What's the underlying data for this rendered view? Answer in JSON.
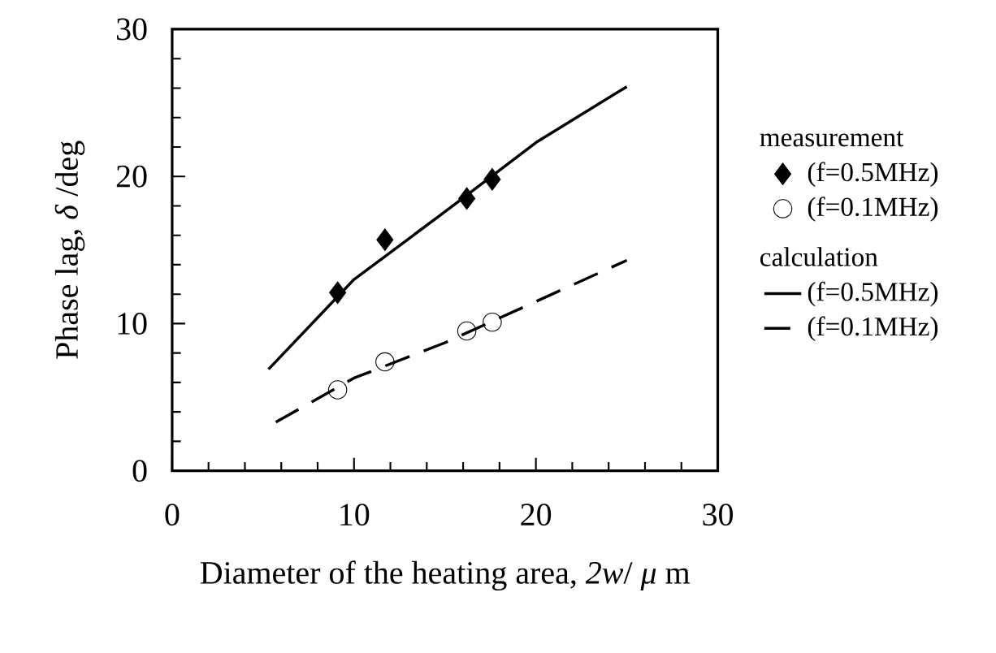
{
  "chart_data": {
    "type": "line",
    "xlabel": "Diameter of the heating area,  *2w*/ *μ* m",
    "ylabel": "Phase lag,  *δ* /deg",
    "xlim": [
      0,
      30
    ],
    "ylim": [
      0,
      30
    ],
    "xticks": [
      0,
      10,
      20,
      30
    ],
    "yticks": [
      0,
      10,
      20,
      30
    ],
    "legend": "right",
    "legend_title": "measurement",
    "annotations": [
      "calculation"
    ],
    "series": [
      {
        "name": "(f=0.5MHz)",
        "type": "scatter",
        "marker": "diamond",
        "color": "#000000",
        "x": [
          9.1,
          11.7,
          16.2,
          17.6
        ],
        "values": [
          12.1,
          15.7,
          18.5,
          19.8
        ]
      },
      {
        "name": "(f=0.1MHz)",
        "type": "scatter",
        "marker": "circle",
        "color": "#000000",
        "x": [
          9.1,
          11.7,
          16.2,
          17.6
        ],
        "values": [
          5.5,
          7.4,
          9.5,
          10.1
        ]
      },
      {
        "name": "(f=0.5MHz)",
        "line_style": "solid",
        "color": "#000000",
        "x": [
          5.3,
          10,
          15,
          20,
          25
        ],
        "values": [
          6.9,
          13.0,
          17.6,
          22.3,
          26.1
        ]
      },
      {
        "name": "(f=0.1MHz)",
        "line_style": "dashed",
        "color": "#000000",
        "x": [
          5.7,
          10,
          15,
          20,
          25
        ],
        "values": [
          3.3,
          6.3,
          8.7,
          11.5,
          14.3
        ]
      }
    ]
  }
}
